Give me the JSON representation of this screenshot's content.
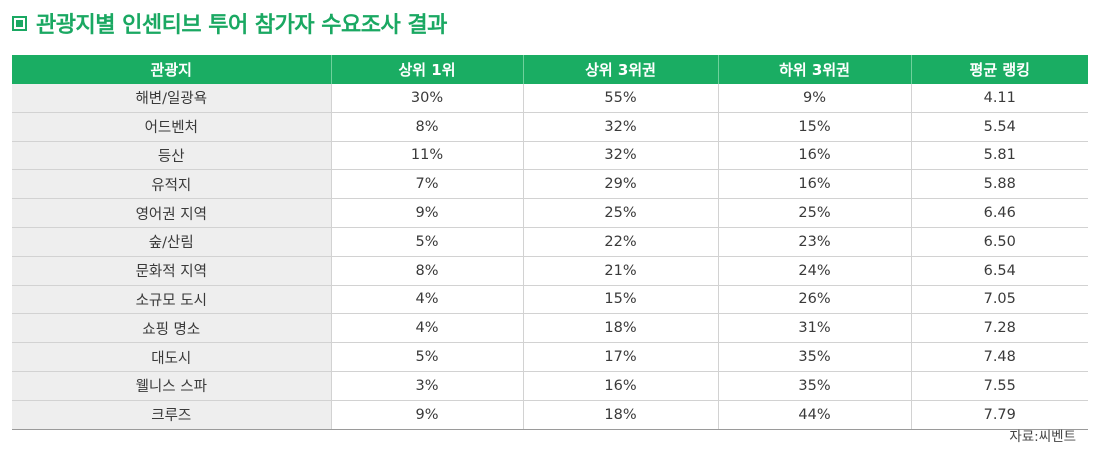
{
  "title": "관광지별 인센티브 투어 참가자 수요조사 결과",
  "table": {
    "headers": [
      "관광지",
      "상위 1위",
      "상위 3위권",
      "하위 3위권",
      "평균 랭킹"
    ],
    "rows": [
      [
        "해변/일광욕",
        "30%",
        "55%",
        "9%",
        "4.11"
      ],
      [
        "어드벤처",
        "8%",
        "32%",
        "15%",
        "5.54"
      ],
      [
        "등산",
        "11%",
        "32%",
        "16%",
        "5.81"
      ],
      [
        "유적지",
        "7%",
        "29%",
        "16%",
        "5.88"
      ],
      [
        "영어권 지역",
        "9%",
        "25%",
        "25%",
        "6.46"
      ],
      [
        "숲/산림",
        "5%",
        "22%",
        "23%",
        "6.50"
      ],
      [
        "문화적 지역",
        "8%",
        "21%",
        "24%",
        "6.54"
      ],
      [
        "소규모 도시",
        "4%",
        "15%",
        "26%",
        "7.05"
      ],
      [
        "쇼핑 명소",
        "4%",
        "18%",
        "31%",
        "7.28"
      ],
      [
        "대도시",
        "5%",
        "17%",
        "35%",
        "7.48"
      ],
      [
        "웰니스 스파",
        "3%",
        "16%",
        "35%",
        "7.55"
      ],
      [
        "크루즈",
        "9%",
        "18%",
        "44%",
        "7.79"
      ]
    ]
  },
  "source": "자료:씨벤트",
  "colors": {
    "accent": "#1aad63",
    "first_column_bg": "#eeeeee"
  }
}
